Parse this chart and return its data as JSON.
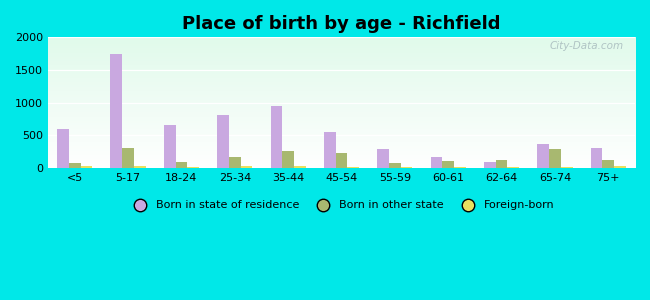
{
  "categories": [
    "<5",
    "5-17",
    "18-24",
    "25-34",
    "35-44",
    "45-54",
    "55-59",
    "60-61",
    "62-64",
    "65-74",
    "75+"
  ],
  "born_in_state": [
    600,
    1750,
    660,
    820,
    950,
    560,
    300,
    175,
    100,
    375,
    315
  ],
  "born_other_state": [
    75,
    310,
    100,
    175,
    265,
    230,
    85,
    115,
    120,
    300,
    125
  ],
  "foreign_born": [
    30,
    30,
    25,
    30,
    30,
    25,
    15,
    25,
    25,
    20,
    30
  ],
  "color_state": "#c9a8e0",
  "color_other": "#a8b870",
  "color_foreign": "#e8e060",
  "title": "Place of birth by age - Richfield",
  "title_fontsize": 13,
  "ylim": [
    0,
    2000
  ],
  "yticks": [
    0,
    500,
    1000,
    1500,
    2000
  ],
  "outer_bg": "#00e8e8",
  "legend_labels": [
    "Born in state of residence",
    "Born in other state",
    "Foreign-born"
  ],
  "watermark": "City-Data.com",
  "bar_width": 0.22
}
